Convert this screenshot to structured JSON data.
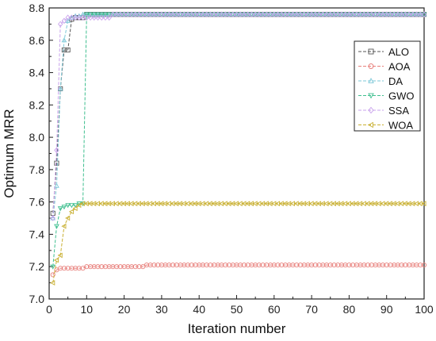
{
  "chart_data": {
    "type": "line",
    "xlabel": "Iteration number",
    "ylabel": "Optimum MRR",
    "xlim": [
      0,
      100
    ],
    "ylim": [
      7.0,
      8.8
    ],
    "xticks": [
      0,
      10,
      20,
      30,
      40,
      50,
      60,
      70,
      80,
      90,
      100
    ],
    "yticks": [
      7.0,
      7.2,
      7.4,
      7.6,
      7.8,
      8.0,
      8.2,
      8.4,
      8.6,
      8.8
    ],
    "grid": false,
    "legend_position": "top-right",
    "series": [
      {
        "name": "ALO",
        "color": "#555555",
        "marker": "square",
        "points": [
          [
            1,
            7.53
          ],
          [
            2,
            7.84
          ],
          [
            3,
            8.3
          ],
          [
            4,
            8.54
          ],
          [
            5,
            8.54
          ],
          [
            6,
            8.73
          ],
          [
            7,
            8.74
          ],
          [
            8,
            8.74
          ],
          [
            9,
            8.74
          ],
          [
            10,
            8.76
          ],
          [
            11,
            8.76
          ],
          [
            100,
            8.76
          ]
        ]
      },
      {
        "name": "AOA",
        "color": "#e8807c",
        "marker": "circle",
        "points": [
          [
            1,
            7.15
          ],
          [
            2,
            7.18
          ],
          [
            3,
            7.19
          ],
          [
            4,
            7.19
          ],
          [
            10,
            7.2
          ],
          [
            20,
            7.2
          ],
          [
            24,
            7.2
          ],
          [
            26,
            7.21
          ],
          [
            100,
            7.21
          ]
        ]
      },
      {
        "name": "DA",
        "color": "#7ec8d8",
        "marker": "triangle-up",
        "points": [
          [
            1,
            7.5
          ],
          [
            2,
            7.7
          ],
          [
            3,
            8.3
          ],
          [
            4,
            8.6
          ],
          [
            5,
            8.72
          ],
          [
            6,
            8.74
          ],
          [
            7,
            8.75
          ],
          [
            8,
            8.75
          ],
          [
            9,
            8.76
          ],
          [
            100,
            8.76
          ]
        ]
      },
      {
        "name": "GWO",
        "color": "#3fbf8f",
        "marker": "triangle-down",
        "points": [
          [
            1,
            7.2
          ],
          [
            2,
            7.45
          ],
          [
            3,
            7.56
          ],
          [
            4,
            7.57
          ],
          [
            5,
            7.58
          ],
          [
            7,
            7.58
          ],
          [
            8,
            7.59
          ],
          [
            9,
            7.59
          ],
          [
            10,
            8.76
          ],
          [
            15,
            8.76
          ],
          [
            100,
            8.76
          ]
        ]
      },
      {
        "name": "SSA",
        "color": "#c9a3ec",
        "marker": "diamond",
        "points": [
          [
            1,
            7.5
          ],
          [
            2,
            7.92
          ],
          [
            3,
            8.7
          ],
          [
            4,
            8.72
          ],
          [
            5,
            8.74
          ],
          [
            6,
            8.74
          ],
          [
            16,
            8.74
          ],
          [
            17,
            8.76
          ],
          [
            100,
            8.76
          ]
        ]
      },
      {
        "name": "WOA",
        "color": "#c9b032",
        "marker": "triangle-left",
        "points": [
          [
            1,
            7.1
          ],
          [
            2,
            7.24
          ],
          [
            3,
            7.27
          ],
          [
            4,
            7.45
          ],
          [
            5,
            7.5
          ],
          [
            6,
            7.54
          ],
          [
            7,
            7.56
          ],
          [
            8,
            7.58
          ],
          [
            9,
            7.59
          ],
          [
            100,
            7.59
          ]
        ]
      }
    ]
  }
}
